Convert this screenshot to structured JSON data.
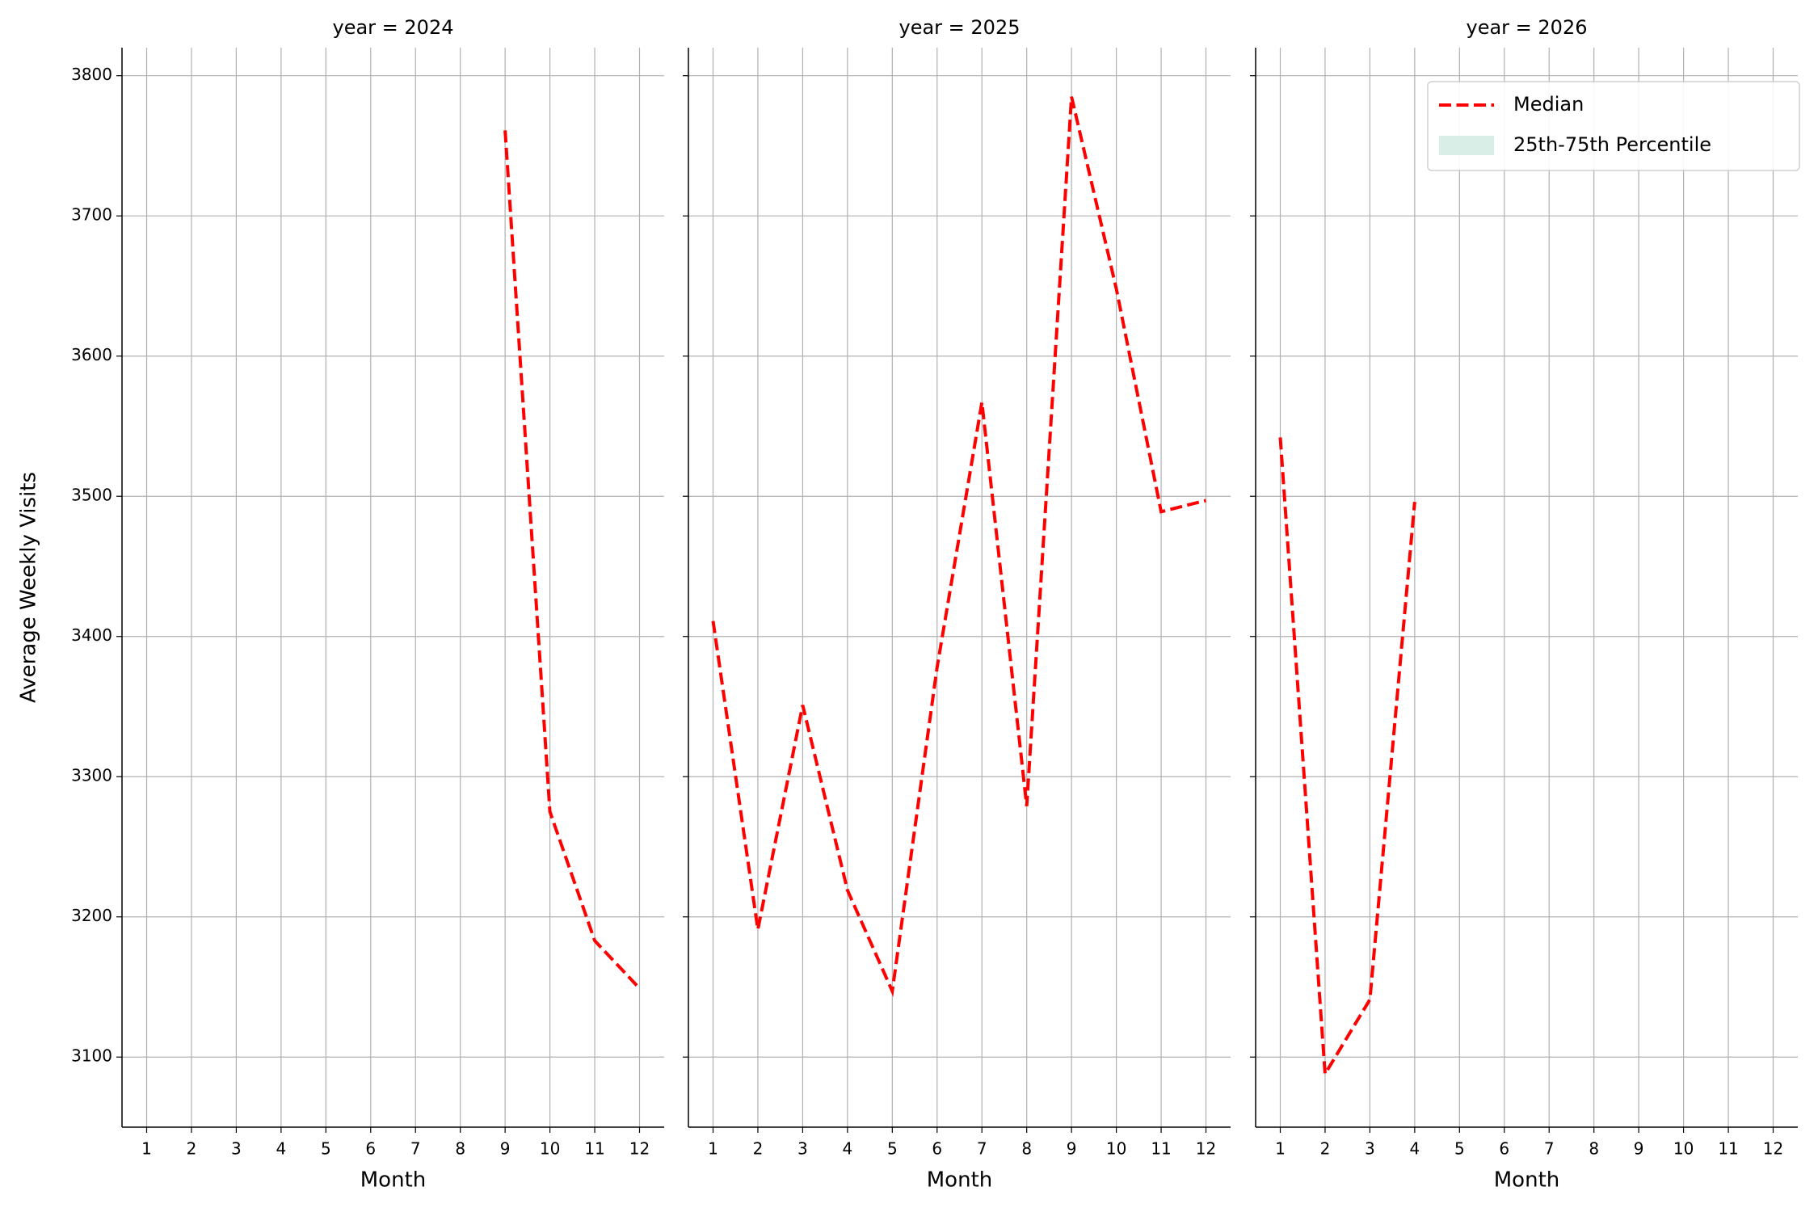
{
  "chart_data": [
    {
      "type": "line",
      "title": "year = 2024",
      "xlabel": "Month",
      "ylabel": "Average Weekly Visits",
      "x": [
        1,
        2,
        3,
        4,
        5,
        6,
        7,
        8,
        9,
        10,
        11,
        12
      ],
      "series": [
        {
          "name": "Median",
          "color": "#ff0000",
          "values": [
            null,
            null,
            null,
            null,
            null,
            null,
            null,
            null,
            3761,
            3275,
            3183,
            3149
          ]
        }
      ],
      "xlim": [
        0.45,
        12.55
      ],
      "ylim": [
        3050,
        3820
      ],
      "xticks": [
        1,
        2,
        3,
        4,
        5,
        6,
        7,
        8,
        9,
        10,
        11,
        12
      ],
      "yticks": [
        3100,
        3200,
        3300,
        3400,
        3500,
        3600,
        3700,
        3800
      ],
      "grid": true
    },
    {
      "type": "line",
      "title": "year = 2025",
      "xlabel": "Month",
      "x": [
        1,
        2,
        3,
        4,
        5,
        6,
        7,
        8,
        9,
        10,
        11,
        12
      ],
      "series": [
        {
          "name": "Median",
          "color": "#ff0000",
          "values": [
            3411,
            3191,
            3351,
            3219,
            3147,
            3378,
            3567,
            3279,
            3785,
            3648,
            3489,
            3497
          ]
        }
      ],
      "xlim": [
        0.45,
        12.55
      ],
      "ylim": [
        3050,
        3820
      ],
      "xticks": [
        1,
        2,
        3,
        4,
        5,
        6,
        7,
        8,
        9,
        10,
        11,
        12
      ],
      "yticks": [
        3100,
        3200,
        3300,
        3400,
        3500,
        3600,
        3700,
        3800
      ],
      "grid": true
    },
    {
      "type": "line",
      "title": "year = 2026",
      "xlabel": "Month",
      "x": [
        1,
        2,
        3,
        4,
        5,
        6,
        7,
        8,
        9,
        10,
        11,
        12
      ],
      "series": [
        {
          "name": "Median",
          "color": "#ff0000",
          "values": [
            3542,
            3088,
            3141,
            3496,
            null,
            null,
            null,
            null,
            null,
            null,
            null,
            null
          ]
        },
        {
          "name": "25th-75th Percentile",
          "color": "#d8eee7"
        }
      ],
      "legend": "upper right",
      "xlim": [
        0.45,
        12.55
      ],
      "ylim": [
        3050,
        3820
      ],
      "xticks": [
        1,
        2,
        3,
        4,
        5,
        6,
        7,
        8,
        9,
        10,
        11,
        12
      ],
      "yticks": [
        3100,
        3200,
        3300,
        3400,
        3500,
        3600,
        3700,
        3800
      ],
      "grid": true
    }
  ]
}
